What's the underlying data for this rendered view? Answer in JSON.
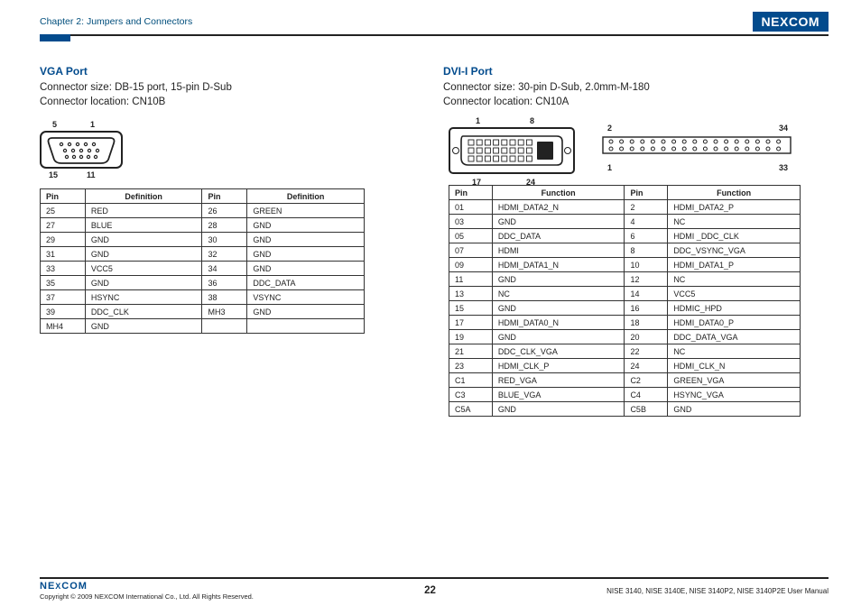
{
  "header": {
    "chapter": "Chapter 2: Jumpers and Connectors",
    "brand": "NE",
    "brand_x": "X",
    "brand2": "COM"
  },
  "vga": {
    "title": "VGA Port",
    "size_line": "Connector size: DB-15 port, 15-pin D-Sub",
    "loc_line": "Connector location: CN10B",
    "diagram": {
      "tl": "5",
      "tr": "1",
      "bl": "15",
      "br": "11"
    },
    "headers": [
      "Pin",
      "Definition",
      "Pin",
      "Definition"
    ],
    "rows": [
      [
        "25",
        "RED",
        "26",
        "GREEN"
      ],
      [
        "27",
        "BLUE",
        "28",
        "GND"
      ],
      [
        "29",
        "GND",
        "30",
        "GND"
      ],
      [
        "31",
        "GND",
        "32",
        "GND"
      ],
      [
        "33",
        "VCC5",
        "34",
        "GND"
      ],
      [
        "35",
        "GND",
        "36",
        "DDC_DATA"
      ],
      [
        "37",
        "HSYNC",
        "38",
        "VSYNC"
      ],
      [
        "39",
        "DDC_CLK",
        "MH3",
        "GND"
      ],
      [
        "MH4",
        "GND",
        "",
        ""
      ]
    ]
  },
  "dvi": {
    "title": "DVI-I Port",
    "size_line": "Connector size: 30-pin D-Sub, 2.0mm-M-180",
    "loc_line": "Connector location: CN10A",
    "diagram1": {
      "tl": "1",
      "tr": "8",
      "bl": "17",
      "br": "24"
    },
    "diagram2": {
      "tl": "2",
      "tr": "34",
      "bl": "1",
      "br": "33"
    },
    "headers": [
      "Pin",
      "Function",
      "Pin",
      "Function"
    ],
    "rows": [
      [
        "01",
        "HDMI_DATA2_N",
        "2",
        "HDMI_DATA2_P"
      ],
      [
        "03",
        "GND",
        "4",
        "NC"
      ],
      [
        "05",
        "DDC_DATA",
        "6",
        "HDMI _DDC_CLK"
      ],
      [
        "07",
        "HDMI",
        "8",
        "DDC_VSYNC_VGA"
      ],
      [
        "09",
        "HDMI_DATA1_N",
        "10",
        "HDMI_DATA1_P"
      ],
      [
        "11",
        "GND",
        "12",
        "NC"
      ],
      [
        "13",
        "NC",
        "14",
        "VCC5"
      ],
      [
        "15",
        "GND",
        "16",
        "HDMIC_HPD"
      ],
      [
        "17",
        "HDMI_DATA0_N",
        "18",
        "HDMI_DATA0_P"
      ],
      [
        "19",
        "GND",
        "20",
        "DDC_DATA_VGA"
      ],
      [
        "21",
        "DDC_CLK_VGA",
        "22",
        "NC"
      ],
      [
        "23",
        "HDMI_CLK_P",
        "24",
        "HDMI_CLK_N"
      ],
      [
        "C1",
        "RED_VGA",
        "C2",
        "GREEN_VGA"
      ],
      [
        "C3",
        "BLUE_VGA",
        "C4",
        "HSYNC_VGA"
      ],
      [
        "C5A",
        "GND",
        "C5B",
        "GND"
      ]
    ]
  },
  "footer": {
    "brand": "NEXCOM",
    "copyright": "Copyright © 2009 NEXCOM International Co., Ltd. All Rights Reserved.",
    "page": "22",
    "product": "NISE 3140, NISE 3140E, NISE 3140P2, NISE 3140P2E User Manual"
  },
  "colors": {
    "accent": "#024b8d"
  }
}
